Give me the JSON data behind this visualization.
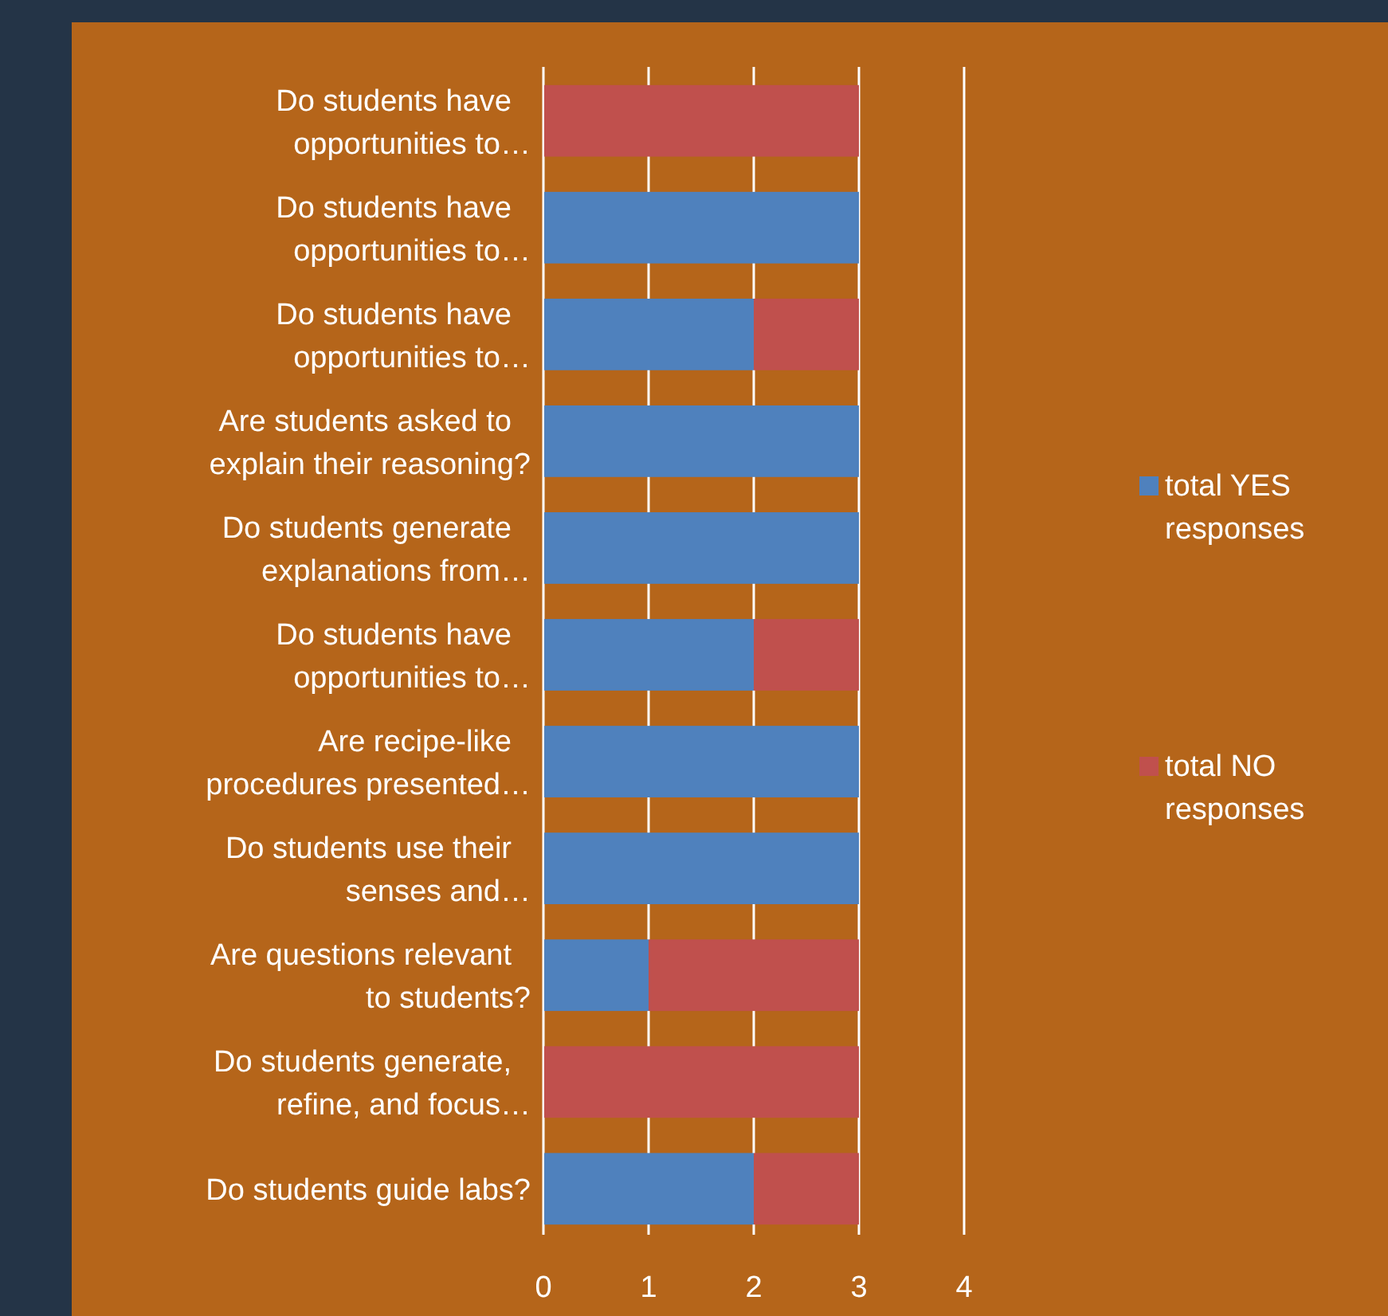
{
  "chart_data": {
    "type": "bar",
    "orientation": "horizontal",
    "stacked": true,
    "categories": [
      "Do students have\nopportunities to…",
      "Do students have\nopportunities to…",
      "Do students have\nopportunities to…",
      "Are students asked to\nexplain their reasoning?",
      "Do students generate\nexplanations from…",
      "Do students have\nopportunities to…",
      "Are recipe-like\nprocedures presented…",
      "Do students use their\nsenses and…",
      "Are questions relevant\nto students?",
      "Do students generate,\nrefine, and focus…",
      "Do students guide labs?"
    ],
    "series": [
      {
        "name": "total YES responses",
        "color": "#4f81bd",
        "values": [
          0,
          3,
          2,
          3,
          3,
          2,
          3,
          3,
          1,
          0,
          2
        ]
      },
      {
        "name": "total NO responses",
        "color": "#c0504d",
        "values": [
          3,
          0,
          1,
          0,
          0,
          1,
          0,
          0,
          2,
          3,
          1
        ]
      }
    ],
    "xlim": [
      0,
      4
    ],
    "xticks": [
      0,
      1,
      2,
      3,
      4
    ],
    "grid": "x",
    "legend": "right"
  }
}
